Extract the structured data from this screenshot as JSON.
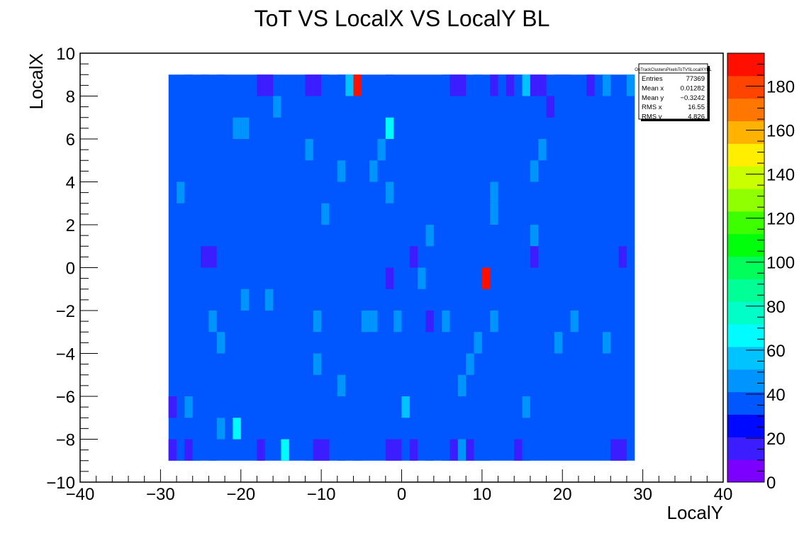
{
  "chart_data": {
    "type": "heatmap",
    "title": "ToT VS LocalX VS LocalY BL",
    "xlabel": "LocalY",
    "ylabel": "LocalX",
    "xlim": [
      -40,
      40
    ],
    "ylim": [
      -10,
      10
    ],
    "x_ticks": [
      "−40",
      "−30",
      "−20",
      "−10",
      "0",
      "10",
      "20",
      "30",
      "40"
    ],
    "y_ticks": [
      "−10",
      "−8",
      "−6",
      "−4",
      "−2",
      "0",
      "2",
      "4",
      "6",
      "8",
      "10"
    ],
    "z_ticks": [
      "0",
      "20",
      "40",
      "60",
      "80",
      "100",
      "120",
      "140",
      "160",
      "180"
    ],
    "zlim": [
      0,
      195
    ],
    "z_label": "",
    "grid": false,
    "data_x_range": [
      -29,
      29
    ],
    "data_y_range": [
      -9,
      9
    ],
    "cell_width": 1,
    "cell_height": 1,
    "background_value": 33,
    "cells": [
      {
        "x": -6,
        "y": 8,
        "v": 190
      },
      {
        "x": 10,
        "y": -1,
        "v": 190
      },
      {
        "x": -7,
        "y": 8,
        "v": 58
      },
      {
        "x": -2,
        "y": 6,
        "v": 62
      },
      {
        "x": 0,
        "y": -7,
        "v": 60
      },
      {
        "x": -21,
        "y": -8,
        "v": 62
      },
      {
        "x": -15,
        "y": -9,
        "v": 66
      },
      {
        "x": -27,
        "y": 8,
        "v": 40
      },
      {
        "x": -25,
        "y": 8,
        "v": 40
      },
      {
        "x": -23,
        "y": 8,
        "v": 40
      },
      {
        "x": -18,
        "y": 8,
        "v": 20
      },
      {
        "x": -17,
        "y": 8,
        "v": 20
      },
      {
        "x": -12,
        "y": 8,
        "v": 20
      },
      {
        "x": -11,
        "y": 8,
        "v": 20
      },
      {
        "x": -10,
        "y": 8,
        "v": 40
      },
      {
        "x": -8,
        "y": 8,
        "v": 40
      },
      {
        "x": -2,
        "y": 8,
        "v": 40
      },
      {
        "x": 5,
        "y": 8,
        "v": 40
      },
      {
        "x": 6,
        "y": 8,
        "v": 20
      },
      {
        "x": 7,
        "y": 8,
        "v": 20
      },
      {
        "x": 9,
        "y": 8,
        "v": 40
      },
      {
        "x": 11,
        "y": 8,
        "v": 20
      },
      {
        "x": 12,
        "y": 8,
        "v": 40
      },
      {
        "x": 13,
        "y": 8,
        "v": 20
      },
      {
        "x": 14,
        "y": 8,
        "v": 40
      },
      {
        "x": 15,
        "y": 8,
        "v": 52
      },
      {
        "x": 16,
        "y": 8,
        "v": 20
      },
      {
        "x": 17,
        "y": 8,
        "v": 20
      },
      {
        "x": 19,
        "y": 8,
        "v": 40
      },
      {
        "x": 20,
        "y": 8,
        "v": 40
      },
      {
        "x": 23,
        "y": 8,
        "v": 20
      },
      {
        "x": 25,
        "y": 8,
        "v": 50
      },
      {
        "x": 28,
        "y": 8,
        "v": 50
      },
      {
        "x": -16,
        "y": 7,
        "v": 50
      },
      {
        "x": 1,
        "y": 7,
        "v": 40
      },
      {
        "x": 14,
        "y": 7,
        "v": 40
      },
      {
        "x": 18,
        "y": 7,
        "v": 20
      },
      {
        "x": -21,
        "y": 6,
        "v": 45
      },
      {
        "x": -20,
        "y": 6,
        "v": 45
      },
      {
        "x": -12,
        "y": 5,
        "v": 45
      },
      {
        "x": -3,
        "y": 5,
        "v": 45
      },
      {
        "x": 17,
        "y": 5,
        "v": 45
      },
      {
        "x": -8,
        "y": 4,
        "v": 45
      },
      {
        "x": -4,
        "y": 4,
        "v": 45
      },
      {
        "x": 16,
        "y": 4,
        "v": 45
      },
      {
        "x": -28,
        "y": 3,
        "v": 45
      },
      {
        "x": -2,
        "y": 3,
        "v": 45
      },
      {
        "x": 11,
        "y": 3,
        "v": 45
      },
      {
        "x": -10,
        "y": 2,
        "v": 45
      },
      {
        "x": 11,
        "y": 2,
        "v": 45
      },
      {
        "x": 3,
        "y": 1,
        "v": 45
      },
      {
        "x": 16,
        "y": 1,
        "v": 45
      },
      {
        "x": -25,
        "y": 0,
        "v": 20
      },
      {
        "x": -24,
        "y": 0,
        "v": 20
      },
      {
        "x": 1,
        "y": 0,
        "v": 20
      },
      {
        "x": 16,
        "y": 0,
        "v": 20
      },
      {
        "x": 27,
        "y": 0,
        "v": 20
      },
      {
        "x": -2,
        "y": -1,
        "v": 20
      },
      {
        "x": 2,
        "y": -1,
        "v": 45
      },
      {
        "x": -20,
        "y": -2,
        "v": 45
      },
      {
        "x": -17,
        "y": -2,
        "v": 45
      },
      {
        "x": -24,
        "y": -3,
        "v": 45
      },
      {
        "x": -11,
        "y": -3,
        "v": 45
      },
      {
        "x": -5,
        "y": -3,
        "v": 45
      },
      {
        "x": -4,
        "y": -3,
        "v": 45
      },
      {
        "x": -1,
        "y": -3,
        "v": 45
      },
      {
        "x": 3,
        "y": -3,
        "v": 20
      },
      {
        "x": 5,
        "y": -3,
        "v": 45
      },
      {
        "x": 11,
        "y": -3,
        "v": 45
      },
      {
        "x": 21,
        "y": -3,
        "v": 45
      },
      {
        "x": -23,
        "y": -4,
        "v": 45
      },
      {
        "x": 9,
        "y": -4,
        "v": 45
      },
      {
        "x": 19,
        "y": -4,
        "v": 45
      },
      {
        "x": 25,
        "y": -4,
        "v": 45
      },
      {
        "x": -11,
        "y": -5,
        "v": 45
      },
      {
        "x": 8,
        "y": -5,
        "v": 45
      },
      {
        "x": -8,
        "y": -6,
        "v": 45
      },
      {
        "x": 7,
        "y": -6,
        "v": 45
      },
      {
        "x": -29,
        "y": -7,
        "v": 20
      },
      {
        "x": -27,
        "y": -7,
        "v": 45
      },
      {
        "x": 15,
        "y": -7,
        "v": 45
      },
      {
        "x": -23,
        "y": -8,
        "v": 45
      },
      {
        "x": -29,
        "y": -9,
        "v": 20
      },
      {
        "x": -28,
        "y": -9,
        "v": 40
      },
      {
        "x": -27,
        "y": -9,
        "v": 20
      },
      {
        "x": -26,
        "y": -9,
        "v": 40
      },
      {
        "x": -24,
        "y": -9,
        "v": 40
      },
      {
        "x": -18,
        "y": -9,
        "v": 20
      },
      {
        "x": -12,
        "y": -9,
        "v": 40
      },
      {
        "x": -11,
        "y": -9,
        "v": 20
      },
      {
        "x": -10,
        "y": -9,
        "v": 20
      },
      {
        "x": -8,
        "y": -9,
        "v": 40
      },
      {
        "x": -6,
        "y": -9,
        "v": 40
      },
      {
        "x": -2,
        "y": -9,
        "v": 20
      },
      {
        "x": -1,
        "y": -9,
        "v": 20
      },
      {
        "x": 1,
        "y": -9,
        "v": 20
      },
      {
        "x": 3,
        "y": -9,
        "v": 40
      },
      {
        "x": 5,
        "y": -9,
        "v": 40
      },
      {
        "x": 6,
        "y": -9,
        "v": 20
      },
      {
        "x": 7,
        "y": -9,
        "v": 50
      },
      {
        "x": 8,
        "y": -9,
        "v": 20
      },
      {
        "x": 9,
        "y": -9,
        "v": 40
      },
      {
        "x": 10,
        "y": -9,
        "v": 40
      },
      {
        "x": 14,
        "y": -9,
        "v": 20
      },
      {
        "x": 15,
        "y": -9,
        "v": 40
      },
      {
        "x": 26,
        "y": -9,
        "v": 20
      },
      {
        "x": 27,
        "y": -9,
        "v": 20
      }
    ],
    "stats": {
      "name": "OnTrackClustersPixelsToTVSLocalXYBL",
      "rows": [
        {
          "label": "Entries",
          "value": "77369"
        },
        {
          "label": "Mean x",
          "value": "0.01282"
        },
        {
          "label": "Mean y",
          "value": "−0.3242"
        },
        {
          "label": "RMS x",
          "value": "16.55"
        },
        {
          "label": "RMS y",
          "value": "4.826"
        }
      ]
    },
    "palette": [
      "#7b00ff",
      "#3b1dff",
      "#0009ff",
      "#0057ff",
      "#0094ff",
      "#00c3ff",
      "#00fcff",
      "#00ffc8",
      "#00ff96",
      "#00ff5a",
      "#00ff0a",
      "#3dff00",
      "#90ff00",
      "#caff00",
      "#ffee00",
      "#ffb300",
      "#ff7700",
      "#ff4400",
      "#ff0f00"
    ]
  }
}
